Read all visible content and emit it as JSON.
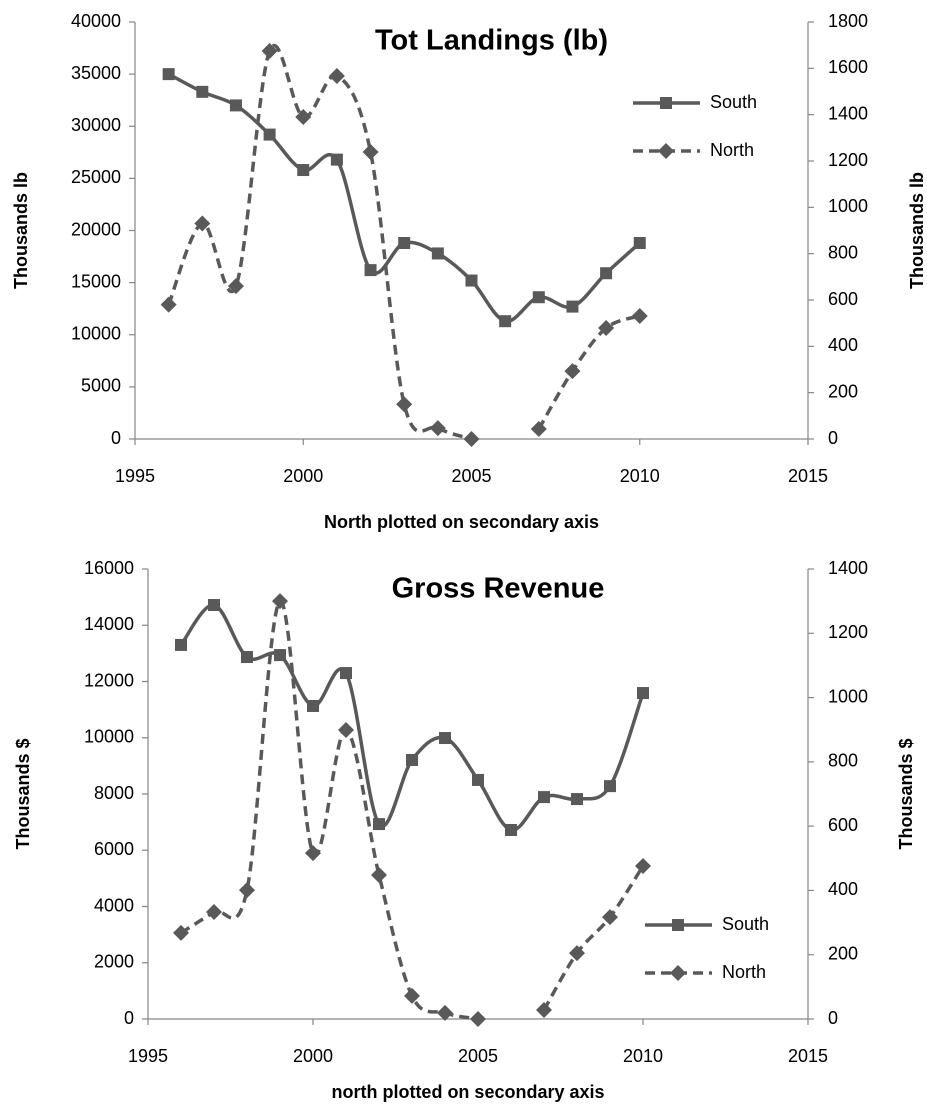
{
  "chart_data": [
    {
      "type": "line",
      "title": "Tot Landings (lb)",
      "x": [
        1996,
        1997,
        1998,
        1999,
        2000,
        2001,
        2002,
        2003,
        2004,
        2005,
        2006,
        2007,
        2008,
        2009,
        2010
      ],
      "xlim": [
        1995,
        2015
      ],
      "xticks": [
        1995,
        2000,
        2005,
        2010,
        2015
      ],
      "ylim": [
        0,
        40000
      ],
      "yticks": [
        0,
        5000,
        10000,
        15000,
        20000,
        25000,
        30000,
        35000,
        40000
      ],
      "y2lim": [
        0,
        1800
      ],
      "y2ticks": [
        0,
        200,
        400,
        600,
        800,
        1000,
        1200,
        1400,
        1600,
        1800
      ],
      "xlabel": "North plotted on secondary axis",
      "ylabel": "Thousands lb",
      "y2label": "Thousands lb",
      "legend": "upper right",
      "series": [
        {
          "name": "South",
          "color": "#595959",
          "dash": "solid",
          "marker": "square",
          "values": [
            35000,
            33300,
            32000,
            29200,
            25800,
            26800,
            16200,
            18800,
            17800,
            15200,
            11300,
            13600,
            12700,
            15900,
            18800
          ]
        },
        {
          "name": "North",
          "color": "#595959",
          "dash": "dashed",
          "marker": "diamond",
          "axis": "y2",
          "values": [
            580,
            930,
            660,
            1675,
            1390,
            1567,
            1239,
            150,
            47,
            0,
            null,
            43,
            293,
            479,
            531
          ]
        }
      ]
    },
    {
      "type": "line",
      "title": "Gross Revenue",
      "x": [
        1996,
        1997,
        1998,
        1999,
        2000,
        2001,
        2002,
        2003,
        2004,
        2005,
        2006,
        2007,
        2008,
        2009,
        2010
      ],
      "xlim": [
        1995,
        2015
      ],
      "xticks": [
        1995,
        2000,
        2005,
        2010,
        2015
      ],
      "ylim": [
        0,
        16000
      ],
      "yticks": [
        0,
        2000,
        4000,
        6000,
        8000,
        10000,
        12000,
        14000,
        16000
      ],
      "y2lim": [
        0,
        1400
      ],
      "y2ticks": [
        0,
        200,
        400,
        600,
        800,
        1000,
        1200,
        1400
      ],
      "xlabel": "north plotted on secondary axis",
      "ylabel": "Thousands $",
      "y2label": "Thousands $",
      "legend": "lower right",
      "series": [
        {
          "name": "South",
          "color": "#595959",
          "dash": "solid",
          "marker": "square",
          "values": [
            13300,
            14720,
            12870,
            12940,
            11130,
            12300,
            6930,
            9210,
            9990,
            8500,
            6720,
            7890,
            7820,
            8280,
            11590
          ]
        },
        {
          "name": "North",
          "color": "#595959",
          "dash": "dashed",
          "marker": "diamond",
          "axis": "y2",
          "values": [
            268,
            333,
            401,
            1300,
            516,
            899,
            448,
            72,
            19,
            0,
            null,
            28,
            205,
            317,
            476
          ]
        }
      ]
    }
  ]
}
